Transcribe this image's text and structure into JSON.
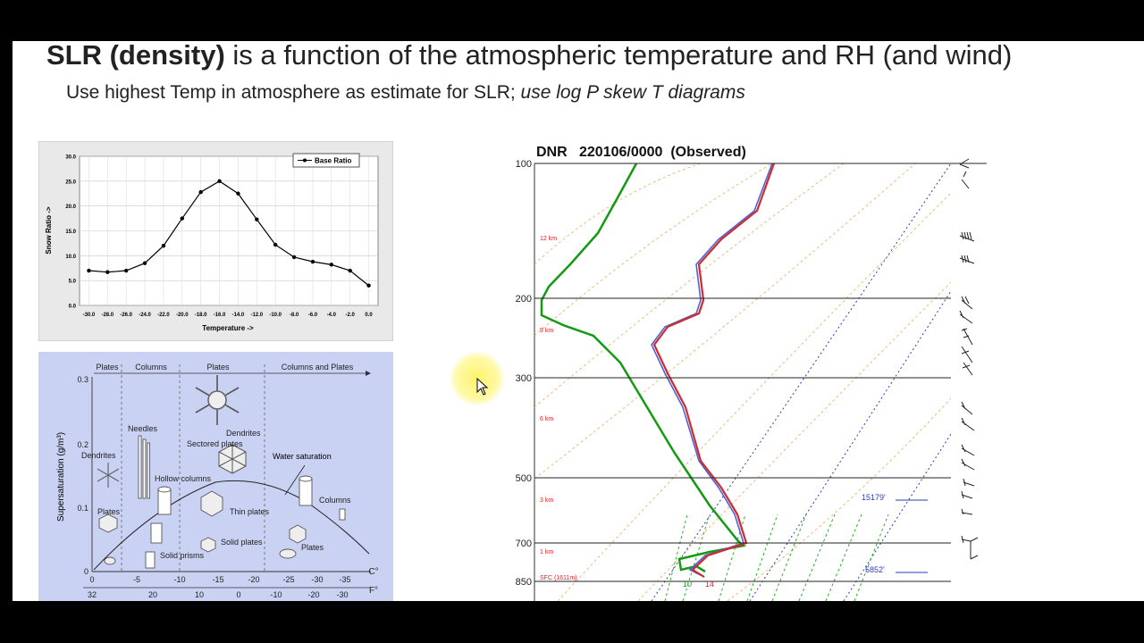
{
  "slide": {
    "title_bold": "SLR (density)",
    "title_rest": " is a function of the atmospheric temperature and RH (and wind)",
    "subtitle_plain": "Use highest Temp in atmosphere as estimate for SLR; ",
    "subtitle_italic": "use log P skew T diagrams"
  },
  "chart_data": [
    {
      "type": "line",
      "title": "",
      "xlabel": "Temperature ->",
      "ylabel": "Snow Ratio ->",
      "legend": [
        "Base Ratio"
      ],
      "legend_position": "top-right",
      "grid": true,
      "xlim": [
        -31,
        1
      ],
      "ylim": [
        0,
        30
      ],
      "x_ticks": [
        "-30.0",
        "-28.0",
        "-26.0",
        "-24.0",
        "-22.0",
        "-20.0",
        "-18.0",
        "-16.0",
        "-14.0",
        "-12.0",
        "-10.0",
        "-8.0",
        "-6.0",
        "-4.0",
        "-2.0",
        "0.0"
      ],
      "y_ticks": [
        "0.0",
        "5.0",
        "10.0",
        "15.0",
        "20.0",
        "25.0",
        "30.0"
      ],
      "series": [
        {
          "name": "Base Ratio",
          "x": [
            -30,
            -28,
            -26,
            -24,
            -22,
            -20,
            -18,
            -16,
            -14,
            -12,
            -10,
            -8,
            -6,
            -4,
            -2,
            0
          ],
          "y": [
            7.0,
            6.7,
            7.0,
            8.5,
            12.0,
            17.5,
            22.8,
            25.0,
            22.5,
            17.3,
            12.2,
            9.7,
            8.8,
            8.2,
            7.0,
            4.0
          ]
        }
      ]
    }
  ],
  "crystal_diagram": {
    "regimes": [
      "Plates",
      "Columns",
      "Plates",
      "Columns and Plates"
    ],
    "ylabel": "Supersaturation (g/m³)",
    "y_ticks": [
      "0.3",
      "0.2",
      "0.1",
      "0"
    ],
    "x_ticks_c": [
      "0",
      "-5",
      "-10",
      "-15",
      "-20",
      "-25",
      "-30",
      "-35"
    ],
    "x_ticks_f": [
      "32",
      "20",
      "10",
      "0",
      "-10",
      "-20",
      "-30"
    ],
    "unit_c": "C°",
    "unit_f": "F°",
    "curve_label": "Water saturation",
    "labels": [
      "Needles",
      "Dendrites",
      "Sectored plates",
      "Dendrites",
      "Hollow columns",
      "Plates",
      "Thin plates",
      "Columns",
      "Solid prisms",
      "Solid plates",
      "Plates"
    ]
  },
  "sounding": {
    "header": "DNR   220106/0000  (Observed)",
    "pressure_levels": [
      "100",
      "200",
      "300",
      "500",
      "700",
      "850"
    ],
    "height_labels": [
      "12 km",
      "9 km",
      "6 km",
      "3 km",
      "1 km",
      "SFC (1611m)"
    ],
    "surface_dewpoint": "10",
    "surface_temp": "14",
    "freezing_heights": [
      "15179'",
      "5852'"
    ]
  }
}
